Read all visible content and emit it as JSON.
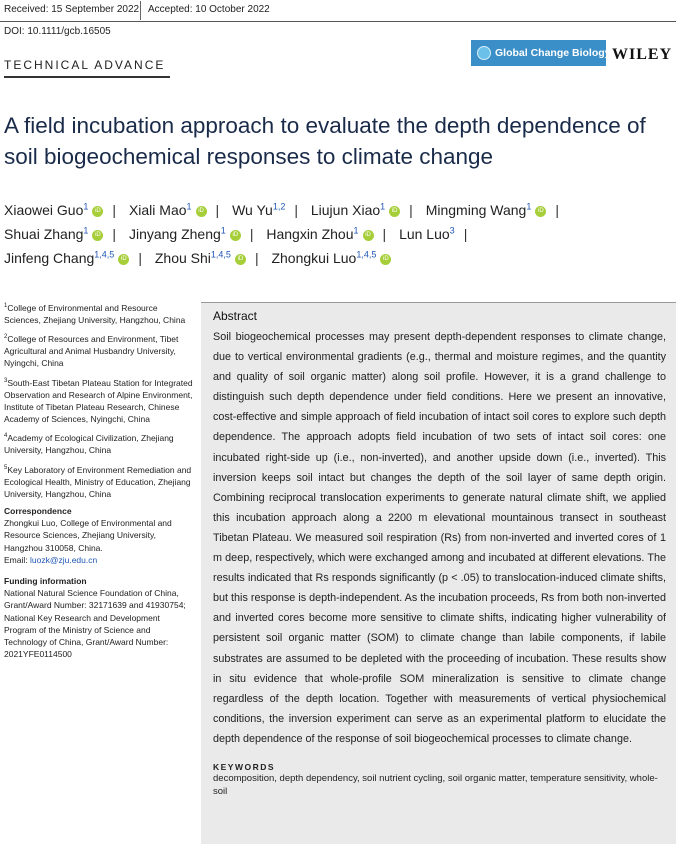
{
  "header": {
    "received": "Received: 15 September 2022",
    "accepted": "Accepted: 10 October 2022",
    "doi": "DOI: 10.1111/gcb.16505"
  },
  "journal": {
    "name": "Global Change Biology",
    "publisher": "WILEY",
    "brand_color": "#3a8fc8"
  },
  "section_label": "TECHNICAL ADVANCE",
  "title": "A field incubation approach to evaluate the depth dependence of soil biogeochemical responses to climate change",
  "authors": [
    [
      {
        "name": "Xiaowei Guo",
        "sup": "1"
      },
      {
        "name": "Xiali Mao",
        "sup": "1"
      },
      {
        "name": "Wu Yu",
        "sup": "1,2"
      },
      {
        "name": "Liujun Xiao",
        "sup": "1"
      },
      {
        "name": "Mingming Wang",
        "sup": "1"
      }
    ],
    [
      {
        "name": "Shuai Zhang",
        "sup": "1"
      },
      {
        "name": "Jinyang Zheng",
        "sup": "1"
      },
      {
        "name": "Hangxin Zhou",
        "sup": "1"
      },
      {
        "name": "Lun Luo",
        "sup": "3"
      }
    ],
    [
      {
        "name": "Jinfeng Chang",
        "sup": "1,4,5"
      },
      {
        "name": "Zhou Shi",
        "sup": "1,4,5"
      },
      {
        "name": "Zhongkui Luo",
        "sup": "1,4,5"
      }
    ]
  ],
  "orcid_icon_label": "iD",
  "affiliations": [
    {
      "sup": "1",
      "text": "College of Environmental and Resource Sciences, Zhejiang University, Hangzhou, China"
    },
    {
      "sup": "2",
      "text": "College of Resources and Environment, Tibet Agricultural and Animal Husbandry University, Nyingchi, China"
    },
    {
      "sup": "3",
      "text": "South-East Tibetan Plateau Station for Integrated Observation and Research of Alpine Environment, Institute of Tibetan Plateau Research, Chinese Academy of Sciences, Nyingchi, China"
    },
    {
      "sup": "4",
      "text": "Academy of Ecological Civilization, Zhejiang University, Hangzhou, China"
    },
    {
      "sup": "5",
      "text": "Key Laboratory of Environment Remediation and Ecological Health, Ministry of Education, Zhejiang University, Hangzhou, China"
    }
  ],
  "correspondence": {
    "heading": "Correspondence",
    "text": "Zhongkui Luo, College of Environmental and Resource Sciences, Zhejiang University, Hangzhou 310058, China.",
    "email_label": "Email:",
    "email": "luozk@zju.edu.cn"
  },
  "funding": {
    "heading": "Funding information",
    "text": "National Natural Science Foundation of China, Grant/Award Number: 32171639 and 41930754; National Key Research and Development Program of the Ministry of Science and Technology of China, Grant/Award Number: 2021YFE0114500"
  },
  "abstract": {
    "heading": "Abstract",
    "text": "Soil biogeochemical processes may present depth-dependent responses to climate change, due to vertical environmental gradients (e.g., thermal and moisture regimes, and the quantity and quality of soil organic matter) along soil profile. However, it is a grand challenge to distinguish such depth dependence under field conditions. Here we present an innovative, cost-effective and simple approach of field incubation of intact soil cores to explore such depth dependence. The approach adopts field incubation of two sets of intact soil cores: one incubated right-side up (i.e., non-inverted), and another upside down (i.e., inverted). This inversion keeps soil intact but changes the depth of the soil layer of same depth origin. Combining reciprocal translocation experiments to generate natural climate shift, we applied this incubation approach along a 2200 m elevational mountainous transect in southeast Tibetan Plateau. We measured soil respiration (Rs) from non-inverted and inverted cores of 1 m deep, respectively, which were exchanged among and incubated at different elevations. The results indicated that Rs responds significantly (p < .05) to translocation-induced climate shifts, but this response is depth-independent. As the incubation proceeds, Rs from both non-inverted and inverted cores become more sensitive to climate shifts, indicating higher vulnerability of persistent soil organic matter (SOM) to climate change than labile components, if labile substrates are assumed to be depleted with the proceeding of incubation. These results show in situ evidence that whole-profile SOM mineralization is sensitive to climate change regardless of the depth location. Together with measurements of vertical physiochemical conditions, the inversion experiment can serve as an experimental platform to elucidate the depth dependence of the response of soil biogeochemical processes to climate change."
  },
  "keywords": {
    "heading": "KEYWORDS",
    "text": "decomposition, depth dependency, soil nutrient cycling, soil organic matter, temperature sensitivity, whole-soil"
  }
}
